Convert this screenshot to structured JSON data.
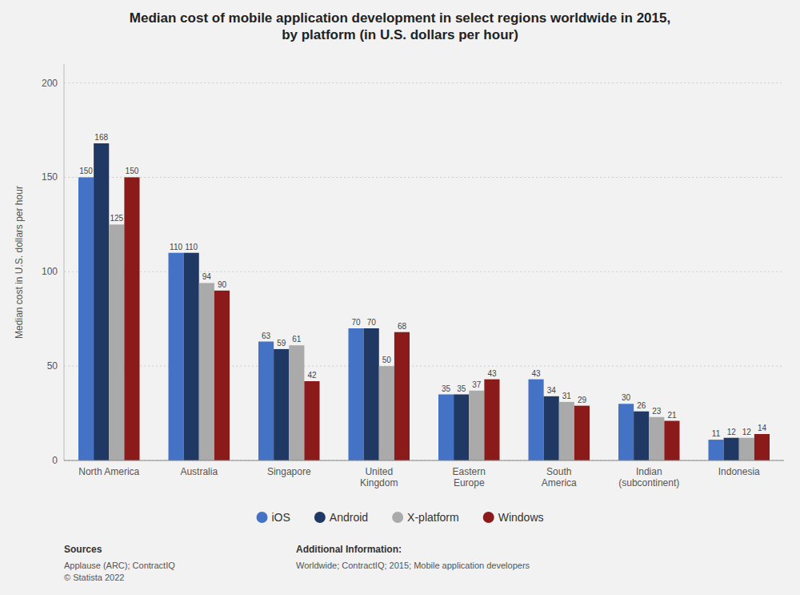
{
  "chart_data": {
    "type": "bar",
    "title": "Median cost of mobile application development in select regions worldwide in 2015,\nby platform (in U.S. dollars per hour)",
    "ylabel": "Median cost in U.S. dollars per hour",
    "categories": [
      "North America",
      "Australia",
      "Singapore",
      "United\nKingdom",
      "Eastern\nEurope",
      "South\nAmerica",
      "Indian\n(subcontinent)",
      "Indonesia"
    ],
    "series": [
      {
        "name": "iOS",
        "color": "#4472C4",
        "values": [
          150,
          110,
          63,
          70,
          35,
          43,
          30,
          11
        ]
      },
      {
        "name": "Android",
        "color": "#1F3864",
        "values": [
          168,
          110,
          59,
          70,
          35,
          34,
          26,
          12
        ]
      },
      {
        "name": "X-platform",
        "color": "#AAAAAA",
        "values": [
          125,
          94,
          61,
          50,
          37,
          31,
          23,
          12
        ]
      },
      {
        "name": "Windows",
        "color": "#8B1A1A",
        "values": [
          150,
          90,
          42,
          68,
          43,
          29,
          21,
          14
        ]
      }
    ],
    "ylim": [
      0,
      210
    ],
    "yticks": [
      0,
      50,
      100,
      150,
      200
    ],
    "grid": true,
    "legend": "bottom",
    "data_labels": true,
    "annotations": [
      "Sources",
      "Applause (ARC); ContractIQ\n© Statista 2022",
      "Additional Information:",
      "Worldwide; ContractIQ; 2015; Mobile application developers"
    ]
  }
}
